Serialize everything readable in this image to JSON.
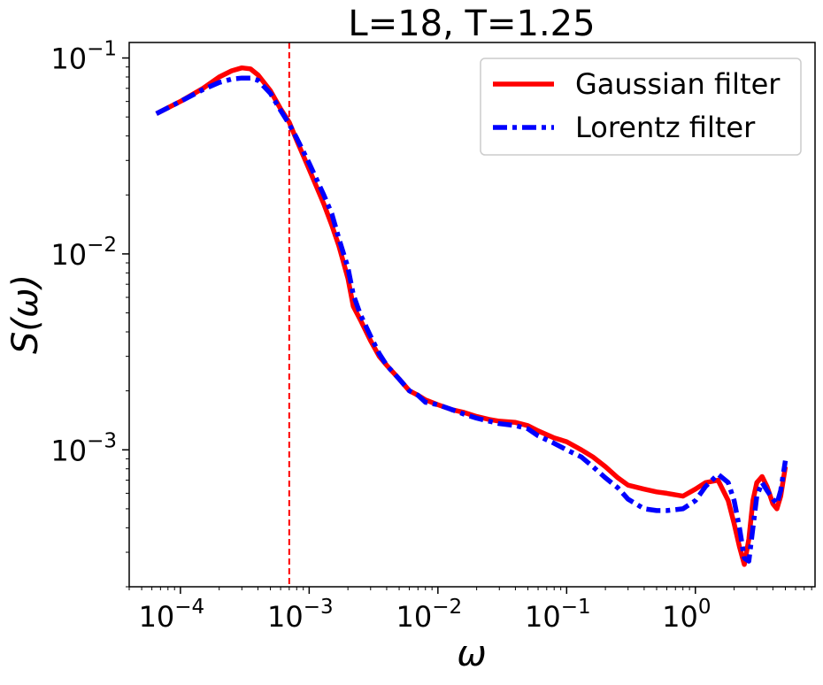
{
  "chart_data": {
    "type": "line",
    "title": "L=18, T=1.25",
    "xlabel": "ω",
    "ylabel": "S(ω)",
    "x_scale": "log",
    "y_scale": "log",
    "xlim": [
      4e-05,
      8.5
    ],
    "ylim": [
      0.0002,
      0.12
    ],
    "x_major_ticks": [
      {
        "value": 0.0001,
        "base": "10",
        "exp": "−4"
      },
      {
        "value": 0.001,
        "base": "10",
        "exp": "−3"
      },
      {
        "value": 0.01,
        "base": "10",
        "exp": "−2"
      },
      {
        "value": 0.1,
        "base": "10",
        "exp": "−1"
      },
      {
        "value": 1,
        "base": "10",
        "exp": "0"
      }
    ],
    "y_major_ticks": [
      {
        "value": 0.001,
        "base": "10",
        "exp": "−3"
      },
      {
        "value": 0.01,
        "base": "10",
        "exp": "−2"
      },
      {
        "value": 0.1,
        "base": "10",
        "exp": "−1"
      }
    ],
    "grid": false,
    "legend_position": "top-right",
    "vline": {
      "x": 0.0007,
      "color": "#ff0000",
      "style": "dashed"
    },
    "series": [
      {
        "name": "Gaussian filter",
        "color": "#ff0000",
        "style": "solid",
        "x": [
          6.5e-05,
          0.0001,
          0.00015,
          0.0002,
          0.00025,
          0.0003,
          0.00035,
          0.0004,
          0.0005,
          0.0006,
          0.0007,
          0.0008,
          0.001,
          0.0013,
          0.0015,
          0.0017,
          0.002,
          0.0022,
          0.0025,
          0.003,
          0.0035,
          0.004,
          0.005,
          0.006,
          0.007,
          0.008,
          0.01,
          0.013,
          0.016,
          0.02,
          0.025,
          0.03,
          0.04,
          0.05,
          0.06,
          0.08,
          0.1,
          0.13,
          0.16,
          0.2,
          0.25,
          0.3,
          0.4,
          0.5,
          0.6,
          0.8,
          1.0,
          1.2,
          1.5,
          1.8,
          2.0,
          2.2,
          2.4,
          2.6,
          2.8,
          3.0,
          3.3,
          3.6,
          4.0,
          4.3,
          4.6,
          5.0
        ],
        "y": [
          0.052,
          0.06,
          0.07,
          0.08,
          0.086,
          0.089,
          0.088,
          0.082,
          0.068,
          0.055,
          0.047,
          0.038,
          0.027,
          0.018,
          0.014,
          0.011,
          0.0075,
          0.0054,
          0.0046,
          0.0036,
          0.003,
          0.0027,
          0.0023,
          0.002,
          0.0019,
          0.0018,
          0.0017,
          0.0016,
          0.00155,
          0.00148,
          0.00143,
          0.0014,
          0.00138,
          0.00133,
          0.00125,
          0.00115,
          0.0011,
          0.001,
          0.00092,
          0.00082,
          0.00072,
          0.00066,
          0.00063,
          0.00061,
          0.0006,
          0.00058,
          0.00063,
          0.00068,
          0.0007,
          0.00055,
          0.00042,
          0.00032,
          0.00026,
          0.00035,
          0.00055,
          0.00068,
          0.00073,
          0.00065,
          0.00053,
          0.0005,
          0.00058,
          0.00082
        ]
      },
      {
        "name": "Lorentz filter",
        "color": "#0000ff",
        "style": "dashdot",
        "x": [
          6.5e-05,
          0.0001,
          0.00015,
          0.0002,
          0.00025,
          0.0003,
          0.00035,
          0.0004,
          0.0005,
          0.0006,
          0.0007,
          0.0008,
          0.001,
          0.0013,
          0.0015,
          0.0017,
          0.002,
          0.0022,
          0.0025,
          0.003,
          0.0035,
          0.004,
          0.005,
          0.006,
          0.007,
          0.008,
          0.01,
          0.013,
          0.016,
          0.02,
          0.025,
          0.03,
          0.04,
          0.05,
          0.06,
          0.08,
          0.1,
          0.13,
          0.16,
          0.2,
          0.25,
          0.3,
          0.4,
          0.5,
          0.6,
          0.8,
          1.0,
          1.2,
          1.5,
          1.8,
          2.0,
          2.2,
          2.4,
          2.6,
          2.8,
          3.0,
          3.3,
          3.6,
          4.0,
          4.3,
          4.6,
          5.0
        ],
        "y": [
          0.052,
          0.06,
          0.069,
          0.075,
          0.078,
          0.079,
          0.079,
          0.077,
          0.066,
          0.054,
          0.046,
          0.039,
          0.029,
          0.02,
          0.016,
          0.012,
          0.0085,
          0.0062,
          0.0049,
          0.0038,
          0.0031,
          0.0027,
          0.0023,
          0.002,
          0.0019,
          0.00175,
          0.0017,
          0.0016,
          0.00152,
          0.00145,
          0.0014,
          0.00136,
          0.00133,
          0.00128,
          0.00118,
          0.00108,
          0.001,
          0.00092,
          0.00082,
          0.00072,
          0.00064,
          0.00056,
          0.0005,
          0.00049,
          0.00049,
          0.0005,
          0.00055,
          0.00065,
          0.00075,
          0.00068,
          0.00055,
          0.0004,
          0.00028,
          0.00027,
          0.0004,
          0.00058,
          0.00068,
          0.00062,
          0.00056,
          0.00053,
          0.00062,
          0.00088
        ]
      }
    ]
  }
}
